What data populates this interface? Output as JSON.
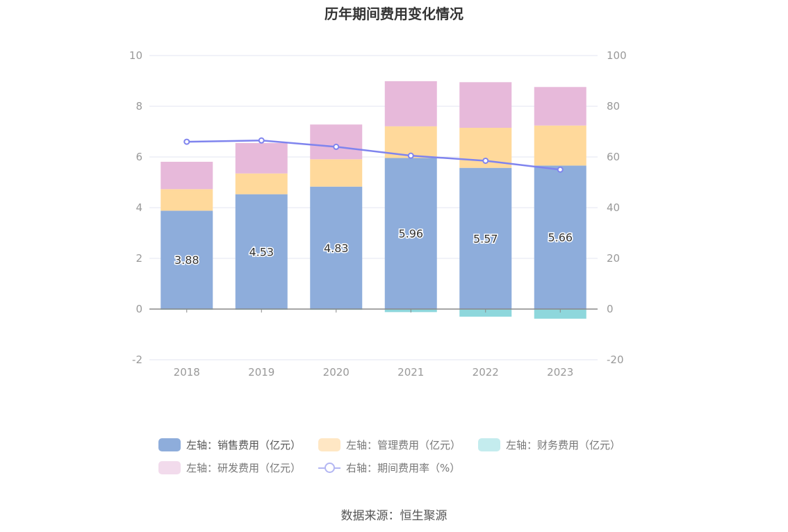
{
  "chart_data": {
    "type": "bar",
    "title": "历年期间费用变化情况",
    "categories": [
      "2018",
      "2019",
      "2020",
      "2021",
      "2022",
      "2023"
    ],
    "left_axis": {
      "min": -2,
      "max": 10,
      "ticks": [
        "-2",
        "0",
        "2",
        "4",
        "6",
        "8",
        "10"
      ]
    },
    "right_axis": {
      "min": -20,
      "max": 100,
      "ticks": [
        "-20",
        "0",
        "20",
        "40",
        "60",
        "80",
        "100"
      ]
    },
    "series": [
      {
        "name": "左轴：销售费用（亿元）",
        "type": "bar",
        "axis": "left",
        "color": "#8eaddb",
        "values": [
          3.88,
          4.53,
          4.83,
          5.96,
          5.57,
          5.66
        ],
        "labels": [
          "3.88",
          "4.53",
          "4.83",
          "5.96",
          "5.57",
          "5.66"
        ]
      },
      {
        "name": "左轴：管理费用（亿元）",
        "type": "bar",
        "axis": "left",
        "color": "#ffd99b",
        "values": [
          0.85,
          0.82,
          1.08,
          1.25,
          1.58,
          1.58
        ]
      },
      {
        "name": "左轴：财务费用（亿元）",
        "type": "bar",
        "axis": "left",
        "color": "#8ed7dc",
        "values": [
          -0.02,
          -0.02,
          -0.03,
          -0.12,
          -0.3,
          -0.38
        ]
      },
      {
        "name": "左轴：研发费用（亿元）",
        "type": "bar",
        "axis": "left",
        "color": "#e7b9da",
        "values": [
          1.08,
          1.2,
          1.37,
          1.78,
          1.8,
          1.52
        ]
      },
      {
        "name": "右轴：期间费用率（%）",
        "type": "line",
        "axis": "right",
        "color": "#7f84ee",
        "values": [
          66.0,
          66.5,
          64.0,
          60.5,
          58.5,
          55.0
        ]
      }
    ],
    "grid": true,
    "legend_position": "bottom"
  },
  "legend": [
    {
      "label": "左轴：销售费用（亿元）",
      "color": "#8eaddb",
      "style": "swatch"
    },
    {
      "label": "左轴：管理费用（亿元）",
      "color": "#ffe7c4",
      "style": "swatch"
    },
    {
      "label": "左轴：财务费用（亿元）",
      "color": "#c4ecee",
      "style": "swatch"
    },
    {
      "label": "左轴：研发费用（亿元）",
      "color": "#f2dbec",
      "style": "swatch"
    },
    {
      "label": "右轴：期间费用率（%）",
      "color": "#b3b6f2",
      "style": "line"
    }
  ],
  "source": "数据来源：恒生聚源"
}
